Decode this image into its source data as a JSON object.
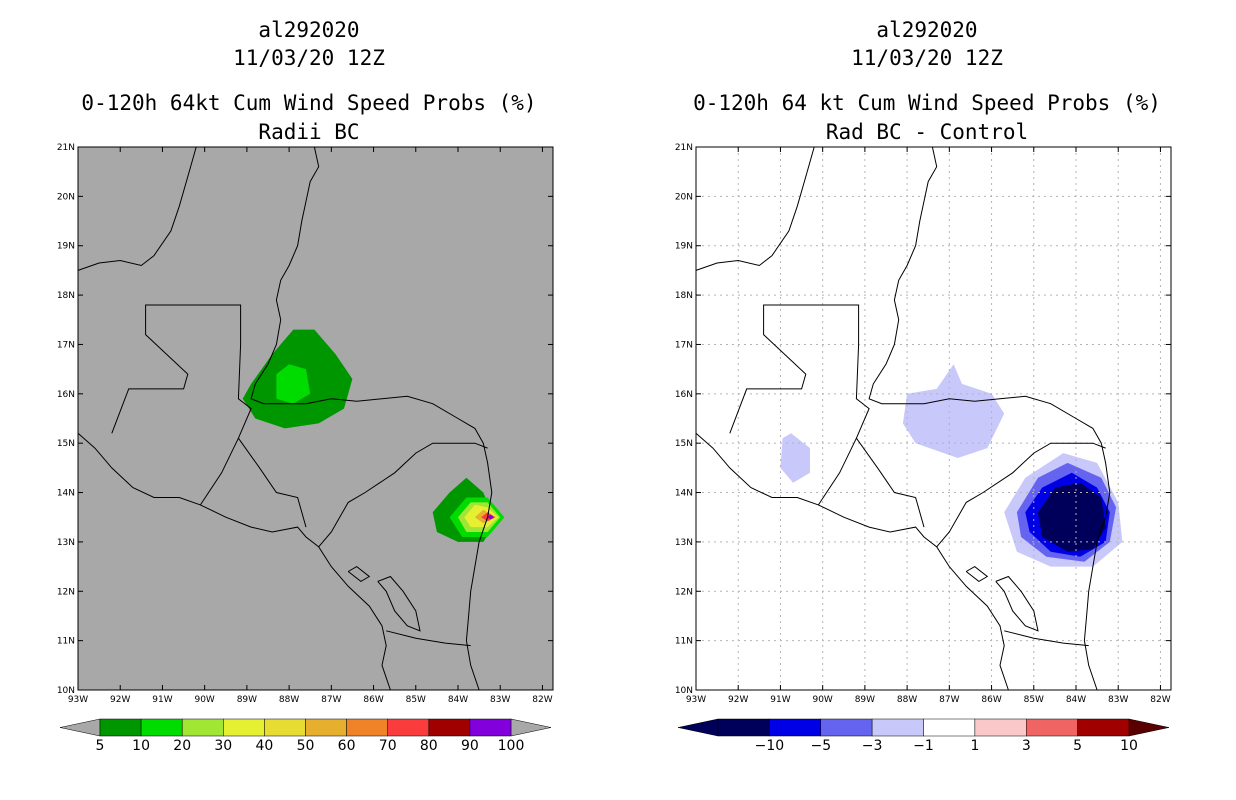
{
  "left": {
    "title1": "al292020",
    "title2": "11/03/20 12Z",
    "title3": "0-120h 64kt Cum Wind Speed Probs (%)",
    "title4": "Radii BC",
    "colorbar": {
      "labels": [
        "5",
        "10",
        "20",
        "30",
        "40",
        "50",
        "60",
        "70",
        "80",
        "90",
        "100"
      ],
      "colors": [
        "#009600",
        "#00dc00",
        "#a0e632",
        "#e6f032",
        "#e6dc32",
        "#e6af2d",
        "#f08228",
        "#fa3c3c",
        "#a00000",
        "#8200dc"
      ]
    }
  },
  "right": {
    "title1": "al292020",
    "title2": "11/03/20 12Z",
    "title3": "0-120h 64 kt Cum Wind Speed Probs (%)",
    "title4": "Rad BC - Control",
    "colorbar": {
      "labels": [
        "−10",
        "−5",
        "−3",
        "−1",
        "1",
        "3",
        "5",
        "10"
      ],
      "colors": [
        "#00005a",
        "#0000e6",
        "#6464f0",
        "#c8c8fa",
        "#ffffff",
        "#fac8c8",
        "#f06464",
        "#a00000"
      ]
    }
  },
  "axes": {
    "lat_labels": [
      "10N",
      "11N",
      "12N",
      "13N",
      "14N",
      "15N",
      "16N",
      "17N",
      "18N",
      "19N",
      "20N",
      "21N"
    ],
    "lon_labels": [
      "93W",
      "92W",
      "91W",
      "90W",
      "89W",
      "88W",
      "87W",
      "86W",
      "85W",
      "84W",
      "83W",
      "82W"
    ]
  },
  "colors": {
    "ocean_left": "#a8a8a8",
    "land_line": "#000000"
  }
}
